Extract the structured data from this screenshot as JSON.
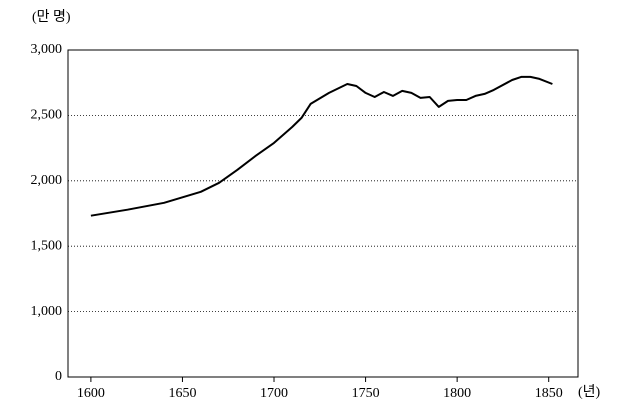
{
  "chart_data": {
    "type": "line",
    "y_axis_label": "(만 명)",
    "x_axis_label": "(년)",
    "x": [
      1600,
      1620,
      1640,
      1660,
      1670,
      1680,
      1690,
      1700,
      1710,
      1715,
      1720,
      1730,
      1740,
      1745,
      1750,
      1755,
      1760,
      1765,
      1770,
      1775,
      1780,
      1785,
      1790,
      1795,
      1800,
      1805,
      1810,
      1815,
      1820,
      1830,
      1835,
      1840,
      1845,
      1852
    ],
    "series": [
      {
        "color": "#000000",
        "values": [
          1733,
          1779,
          1832,
          1916,
          1985,
          2084,
          2191,
          2290,
          2412,
          2481,
          2588,
          2672,
          2740,
          2725,
          2672,
          2641,
          2679,
          2649,
          2687,
          2672,
          2634,
          2641,
          2565,
          2611,
          2618,
          2618,
          2649,
          2664,
          2695,
          2771,
          2794,
          2794,
          2779,
          2740
        ]
      }
    ],
    "xlim": [
      1587.5,
      1866
    ],
    "xticks": [
      1600,
      1650,
      1700,
      1750,
      1800,
      1850
    ],
    "ylim": [
      0,
      3000
    ],
    "yticks": [
      0,
      {
        "value": 1000,
        "label": "1,000"
      },
      {
        "value": 1500,
        "label": "1,500"
      },
      {
        "value": 2000,
        "label": "2,000"
      },
      {
        "value": 2500,
        "label": "2,500"
      },
      {
        "value": 3000,
        "label": "3,000"
      }
    ],
    "broken_axis": true,
    "grid": true
  }
}
